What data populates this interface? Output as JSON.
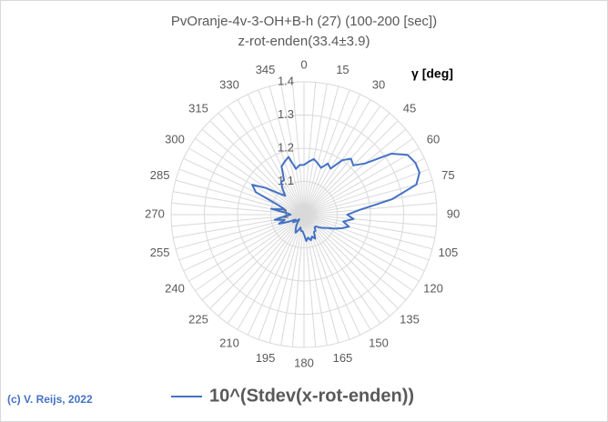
{
  "chart_data": {
    "type": "radar",
    "title": "PvOranje-4v-3-OH+B-h (27) (100-200 [sec])",
    "subtitle": "z-rot-enden(33.4±3.9)",
    "axis_label": "γ [deg]",
    "credit": "(c) V. Reijs, 2022",
    "categories": [
      "0",
      null,
      null,
      "15",
      null,
      null,
      "30",
      null,
      null,
      "45",
      null,
      null,
      "60",
      null,
      null,
      "75",
      null,
      null,
      "90",
      null,
      null,
      "105",
      null,
      null,
      "120",
      null,
      null,
      "135",
      null,
      null,
      "150",
      null,
      null,
      "165",
      null,
      null,
      "180",
      null,
      null,
      "195",
      null,
      null,
      "210",
      null,
      null,
      "225",
      null,
      null,
      "240",
      null,
      null,
      "255",
      null,
      null,
      "270",
      null,
      null,
      "285",
      null,
      null,
      "300",
      null,
      null,
      "315",
      null,
      null,
      "330",
      null,
      null,
      "345",
      null,
      null
    ],
    "series": [
      {
        "name": "10^(Stdev(x-rot-enden))",
        "color": "#4472c4",
        "values": [
          1.15,
          1.16,
          1.17,
          1.16,
          1.15,
          1.17,
          1.16,
          1.2,
          1.22,
          1.21,
          1.24,
          1.32,
          1.36,
          1.37,
          1.37,
          1.35,
          1.27,
          1.17,
          1.13,
          1.15,
          1.12,
          1.14,
          1.12,
          1.1,
          1.08,
          1.07,
          1.06,
          1.05,
          1.05,
          1.06,
          1.06,
          1.08,
          1.07,
          1.08,
          1.07,
          1.08,
          1.06,
          1.05,
          1.05,
          1.04,
          1.05,
          1.06,
          1.05,
          1.04,
          1.03,
          1.02,
          1.03,
          1.04,
          1.03,
          1.05,
          1.08,
          1.06,
          1.09,
          1.06,
          1.04,
          1.05,
          1.1,
          1.06,
          1.08,
          1.16,
          1.18,
          1.14,
          1.1,
          1.08,
          1.1,
          1.12,
          1.12,
          1.16,
          1.17,
          1.18,
          1.14,
          1.15
        ]
      }
    ],
    "ylim": [
      1,
      1.4
    ],
    "yticks": [
      1,
      1.1,
      1.2,
      1.3,
      1.4
    ],
    "grid": true
  }
}
